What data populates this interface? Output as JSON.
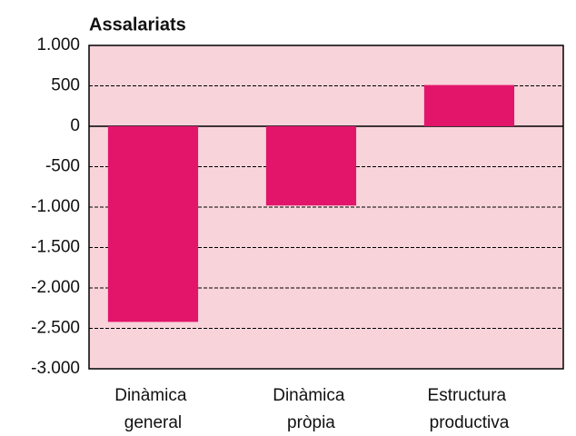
{
  "chart_data": {
    "type": "bar",
    "title": "Assalariats",
    "categories": [
      "Dinàmica general",
      "Dinàmica pròpia",
      "Estructura productiva"
    ],
    "values": [
      -2420,
      -980,
      510
    ],
    "color": "#e2156b",
    "background": "#f8d3da",
    "ylim": [
      -3000,
      1000
    ],
    "yticks": [
      {
        "value": -3000,
        "label": "-3.000"
      },
      {
        "value": -2500,
        "label": "-2.500"
      },
      {
        "value": -2000,
        "label": "-2.000"
      },
      {
        "value": -1500,
        "label": "-1.500"
      },
      {
        "value": -1000,
        "label": "-1.000"
      },
      -500,
      0,
      500,
      {
        "value": 1000,
        "label": "1.000"
      }
    ],
    "grid": true
  }
}
